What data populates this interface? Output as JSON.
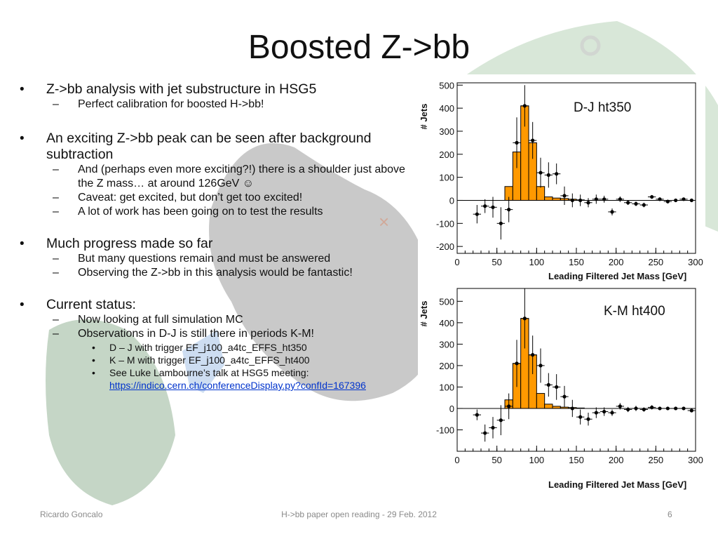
{
  "slide": {
    "title": "Boosted Z->bb",
    "bullets": [
      {
        "text": "Z->bb analysis with jet substructure in HSG5",
        "sub": [
          "Perfect calibration for boosted H->bb!"
        ]
      },
      {
        "text": "An exciting Z->bb peak can be seen after background subtraction",
        "sub": [
          "And (perhaps even more exciting?!) there is a shoulder just above the Z mass… at around 126GeV ☺",
          "Caveat: get excited, but don’t get too excited!",
          "A lot of work has been going on to test the results"
        ]
      },
      {
        "text": "Much progress made so far",
        "sub": [
          "But many questions remain and must be answered",
          "Observing the Z->bb in this analysis would be fantastic!"
        ]
      },
      {
        "text": "Current status:",
        "sub": [
          "Now looking at full simulation MC",
          "Observations in D-J  is still there in periods K-M!"
        ],
        "subsub": [
          "D – J with trigger EF_j100_a4tc_EFFS_ht350",
          "K – M with trigger EF_j100_a4tc_EFFS_ht400",
          "See Luke Lambourne’s talk at HSG5 meeting:"
        ],
        "link": "https://indico.cern.ch/conferenceDisplay.py?confId=167396"
      }
    ]
  },
  "footer": {
    "author": "Ricardo Goncalo",
    "event": "H->bb paper open reading - 29 Feb. 2012",
    "page": "6"
  },
  "colors": {
    "histogram_fill": "#ff9900",
    "points": "#000000",
    "link": "#0033cc"
  },
  "chart_data": [
    {
      "type": "bar",
      "label": "D-J ht350",
      "xlabel": "Leading Filtered Jet Mass [GeV]",
      "ylabel": "# Jets",
      "xlim": [
        0,
        300
      ],
      "ylim": [
        -230,
        510
      ],
      "x_ticks": [
        0,
        50,
        100,
        150,
        200,
        250,
        300
      ],
      "y_ticks": [
        -200,
        -100,
        0,
        100,
        200,
        300,
        400,
        500
      ],
      "bin_width": 10,
      "series": [
        {
          "kind": "histogram",
          "bin_low_edges": [
            60,
            70,
            80,
            90,
            100,
            110,
            120,
            130,
            140,
            150
          ],
          "values": [
            60,
            210,
            410,
            250,
            60,
            15,
            10,
            8,
            5,
            2
          ]
        },
        {
          "kind": "data_points",
          "x": [
            25,
            35,
            45,
            55,
            65,
            75,
            85,
            95,
            105,
            115,
            125,
            135,
            145,
            155,
            165,
            175,
            185,
            195,
            205,
            215,
            225,
            235,
            245,
            255,
            265,
            275,
            285,
            295
          ],
          "y": [
            -60,
            -25,
            -30,
            -100,
            -40,
            250,
            410,
            260,
            120,
            110,
            115,
            20,
            0,
            0,
            -10,
            5,
            5,
            -50,
            5,
            -10,
            -15,
            -20,
            15,
            5,
            -5,
            0,
            5,
            0
          ],
          "err": [
            40,
            30,
            45,
            70,
            55,
            110,
            90,
            80,
            65,
            55,
            45,
            40,
            30,
            25,
            20,
            20,
            15,
            15,
            12,
            10,
            10,
            10,
            8,
            8,
            8,
            6,
            6,
            6
          ]
        }
      ]
    },
    {
      "type": "bar",
      "label": "K-M ht400",
      "xlabel": "Leading Filtered Jet Mass [GeV]",
      "ylabel": "# Jets",
      "xlim": [
        0,
        300
      ],
      "ylim": [
        -200,
        560
      ],
      "x_ticks": [
        0,
        50,
        100,
        150,
        200,
        250,
        300
      ],
      "y_ticks": [
        -100,
        0,
        100,
        200,
        300,
        400,
        500
      ],
      "bin_width": 10,
      "series": [
        {
          "kind": "histogram",
          "bin_low_edges": [
            60,
            70,
            80,
            90,
            100,
            110,
            120,
            130,
            140,
            150
          ],
          "values": [
            40,
            210,
            420,
            250,
            70,
            20,
            10,
            6,
            4,
            2
          ]
        },
        {
          "kind": "data_points",
          "x": [
            25,
            35,
            45,
            55,
            65,
            75,
            85,
            95,
            105,
            115,
            125,
            135,
            145,
            155,
            165,
            175,
            185,
            195,
            205,
            215,
            225,
            235,
            245,
            255,
            265,
            275,
            285,
            295
          ],
          "y": [
            -30,
            -115,
            -90,
            -55,
            10,
            210,
            420,
            250,
            200,
            110,
            100,
            55,
            0,
            -40,
            -50,
            -20,
            -15,
            -20,
            10,
            -5,
            0,
            -5,
            5,
            0,
            0,
            0,
            0,
            -10
          ],
          "err": [
            25,
            40,
            50,
            70,
            60,
            110,
            140,
            90,
            80,
            55,
            60,
            50,
            40,
            35,
            30,
            25,
            20,
            15,
            15,
            12,
            12,
            10,
            10,
            8,
            8,
            6,
            6,
            6
          ]
        }
      ]
    }
  ]
}
